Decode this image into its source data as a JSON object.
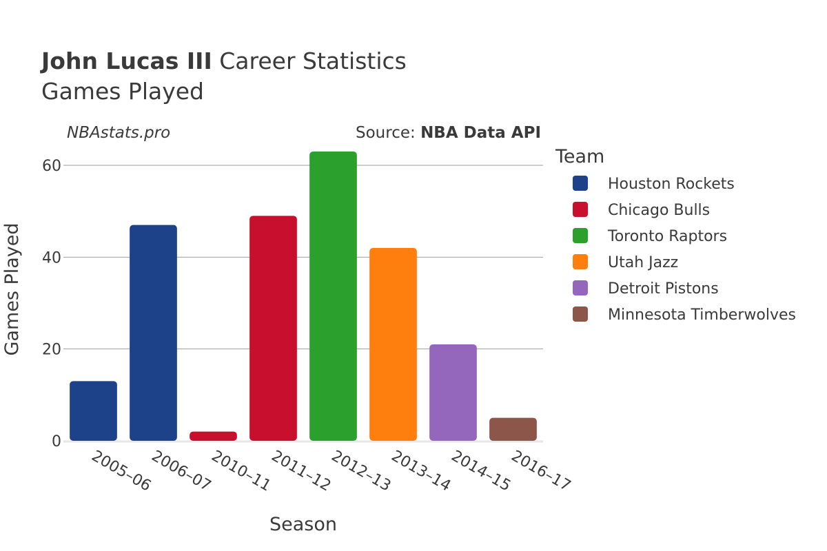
{
  "header": {
    "title_bold": "John Lucas III",
    "title_rest": " Career Statistics",
    "subtitle": "Games Played",
    "credit": "NBAstats.pro",
    "source_prefix": "Source: ",
    "source_name": "NBA Data API"
  },
  "chart_data": {
    "type": "bar",
    "xlabel": "Season",
    "ylabel": "Games Played",
    "ylim": [
      0,
      66
    ],
    "yticks": [
      0,
      20,
      40,
      60
    ],
    "grid": true,
    "legend_title": "Team",
    "legend_position": "right",
    "categories": [
      "2005–06",
      "2006–07",
      "2010–11",
      "2011–12",
      "2012–13",
      "2013–14",
      "2014–15",
      "2016–17"
    ],
    "values": [
      13,
      47,
      2,
      49,
      63,
      42,
      21,
      5
    ],
    "bar_teams": [
      "Houston Rockets",
      "Houston Rockets",
      "Chicago Bulls",
      "Chicago Bulls",
      "Toronto Raptors",
      "Utah Jazz",
      "Detroit Pistons",
      "Minnesota Timberwolves"
    ],
    "teams": [
      {
        "name": "Houston Rockets",
        "color": "#1d428a"
      },
      {
        "name": "Chicago Bulls",
        "color": "#c8102e"
      },
      {
        "name": "Toronto Raptors",
        "color": "#2ca02c"
      },
      {
        "name": "Utah Jazz",
        "color": "#ff7f0e"
      },
      {
        "name": "Detroit Pistons",
        "color": "#9467bd"
      },
      {
        "name": "Minnesota Timberwolves",
        "color": "#8c564b"
      }
    ]
  }
}
